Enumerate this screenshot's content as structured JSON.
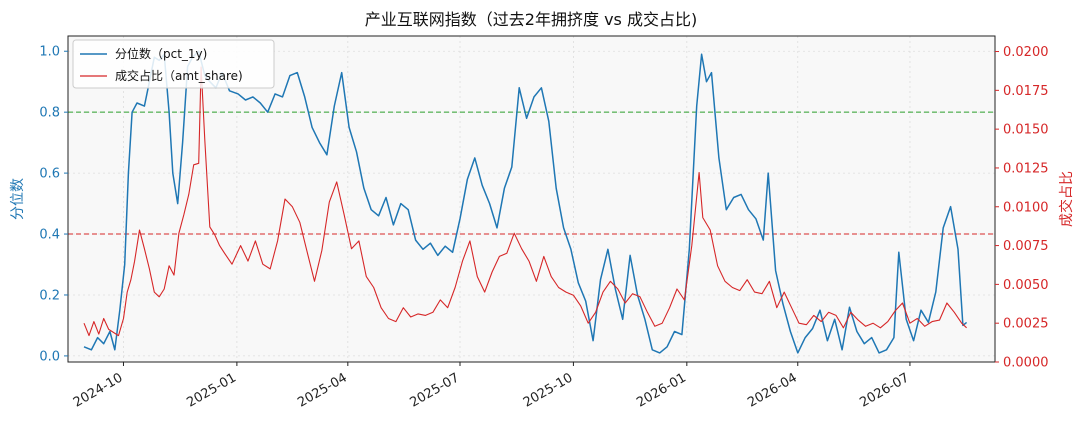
{
  "chart_data": {
    "type": "line",
    "title": "产业互联网指数（过去2年拥挤度 vs 成交占比)",
    "ylabel_left": "分位数",
    "ylabel_right": "成交占比",
    "x_ticks": [
      "2024-10",
      "2025-01",
      "2025-04",
      "2025-07",
      "2025-10",
      "2026-01",
      "2026-04",
      "2026-07"
    ],
    "x_range": [
      "2024-08-17",
      "2026-09-08"
    ],
    "y_left": {
      "lim": [
        -0.02,
        1.05
      ],
      "ticks": [
        "0.0",
        "0.2",
        "0.4",
        "0.6",
        "0.8",
        "1.0"
      ]
    },
    "y_right": {
      "lim": [
        0.0,
        0.021
      ],
      "ticks": [
        "0.0000",
        "0.0025",
        "0.0050",
        "0.0075",
        "0.0100",
        "0.0125",
        "0.0150",
        "0.0175",
        "0.0200"
      ]
    },
    "hlines": [
      {
        "axis": "left",
        "value": 0.8,
        "color": "#2ca02c"
      },
      {
        "axis": "left",
        "value": 0.4,
        "color": "#d62728"
      }
    ],
    "legend": {
      "placement": "top-left",
      "entries": [
        "分位数（pct_1y)",
        "成交占比（amt_share)"
      ]
    },
    "grid": true,
    "colors": {
      "pct": "#1f77b4",
      "amt": "#d62728"
    },
    "series": [
      {
        "name": "分位数（pct_1y)",
        "axis": "left",
        "points": [
          [
            "2024-08-30",
            0.03
          ],
          [
            "2024-09-05",
            0.02
          ],
          [
            "2024-09-10",
            0.06
          ],
          [
            "2024-09-15",
            0.04
          ],
          [
            "2024-09-20",
            0.08
          ],
          [
            "2024-09-24",
            0.02
          ],
          [
            "2024-09-28",
            0.15
          ],
          [
            "2024-10-02",
            0.3
          ],
          [
            "2024-10-05",
            0.6
          ],
          [
            "2024-10-08",
            0.8
          ],
          [
            "2024-10-12",
            0.83
          ],
          [
            "2024-10-18",
            0.82
          ],
          [
            "2024-10-22",
            0.9
          ],
          [
            "2024-10-26",
            0.98
          ],
          [
            "2024-10-30",
            0.97
          ],
          [
            "2024-11-03",
            0.99
          ],
          [
            "2024-11-07",
            0.8
          ],
          [
            "2024-11-10",
            0.6
          ],
          [
            "2024-11-14",
            0.5
          ],
          [
            "2024-11-18",
            0.7
          ],
          [
            "2024-11-22",
            0.95
          ],
          [
            "2024-11-26",
            0.98
          ],
          [
            "2024-12-01",
            1.0
          ],
          [
            "2024-12-06",
            0.92
          ],
          [
            "2024-12-10",
            0.9
          ],
          [
            "2024-12-15",
            0.88
          ],
          [
            "2024-12-20",
            0.93
          ],
          [
            "2024-12-26",
            0.87
          ],
          [
            "2025-01-02",
            0.86
          ],
          [
            "2025-01-08",
            0.84
          ],
          [
            "2025-01-14",
            0.85
          ],
          [
            "2025-01-20",
            0.83
          ],
          [
            "2025-01-26",
            0.8
          ],
          [
            "2025-02-01",
            0.86
          ],
          [
            "2025-02-07",
            0.85
          ],
          [
            "2025-02-13",
            0.92
          ],
          [
            "2025-02-19",
            0.93
          ],
          [
            "2025-02-25",
            0.85
          ],
          [
            "2025-03-03",
            0.75
          ],
          [
            "2025-03-09",
            0.7
          ],
          [
            "2025-03-15",
            0.66
          ],
          [
            "2025-03-21",
            0.82
          ],
          [
            "2025-03-27",
            0.93
          ],
          [
            "2025-04-02",
            0.75
          ],
          [
            "2025-04-08",
            0.67
          ],
          [
            "2025-04-14",
            0.55
          ],
          [
            "2025-04-20",
            0.48
          ],
          [
            "2025-04-26",
            0.46
          ],
          [
            "2025-05-02",
            0.52
          ],
          [
            "2025-05-08",
            0.43
          ],
          [
            "2025-05-14",
            0.5
          ],
          [
            "2025-05-20",
            0.48
          ],
          [
            "2025-05-26",
            0.38
          ],
          [
            "2025-06-01",
            0.35
          ],
          [
            "2025-06-07",
            0.37
          ],
          [
            "2025-06-13",
            0.33
          ],
          [
            "2025-06-19",
            0.36
          ],
          [
            "2025-06-25",
            0.34
          ],
          [
            "2025-07-01",
            0.45
          ],
          [
            "2025-07-07",
            0.58
          ],
          [
            "2025-07-13",
            0.65
          ],
          [
            "2025-07-19",
            0.56
          ],
          [
            "2025-07-25",
            0.5
          ],
          [
            "2025-07-31",
            0.42
          ],
          [
            "2025-08-06",
            0.55
          ],
          [
            "2025-08-12",
            0.62
          ],
          [
            "2025-08-18",
            0.88
          ],
          [
            "2025-08-24",
            0.78
          ],
          [
            "2025-08-30",
            0.85
          ],
          [
            "2025-09-05",
            0.88
          ],
          [
            "2025-09-11",
            0.77
          ],
          [
            "2025-09-17",
            0.55
          ],
          [
            "2025-09-23",
            0.42
          ],
          [
            "2025-09-29",
            0.35
          ],
          [
            "2025-10-05",
            0.24
          ],
          [
            "2025-10-11",
            0.18
          ],
          [
            "2025-10-17",
            0.05
          ],
          [
            "2025-10-23",
            0.25
          ],
          [
            "2025-10-29",
            0.35
          ],
          [
            "2025-11-04",
            0.22
          ],
          [
            "2025-11-10",
            0.12
          ],
          [
            "2025-11-16",
            0.33
          ],
          [
            "2025-11-22",
            0.2
          ],
          [
            "2025-11-28",
            0.12
          ],
          [
            "2025-12-04",
            0.02
          ],
          [
            "2025-12-10",
            0.01
          ],
          [
            "2025-12-16",
            0.03
          ],
          [
            "2025-12-22",
            0.08
          ],
          [
            "2025-12-28",
            0.07
          ],
          [
            "2026-01-03",
            0.35
          ],
          [
            "2026-01-09",
            0.82
          ],
          [
            "2026-01-13",
            0.99
          ],
          [
            "2026-01-17",
            0.9
          ],
          [
            "2026-01-21",
            0.93
          ],
          [
            "2026-01-27",
            0.65
          ],
          [
            "2026-02-02",
            0.48
          ],
          [
            "2026-02-08",
            0.52
          ],
          [
            "2026-02-14",
            0.53
          ],
          [
            "2026-02-20",
            0.48
          ],
          [
            "2026-02-26",
            0.45
          ],
          [
            "2026-03-04",
            0.38
          ],
          [
            "2026-03-08",
            0.6
          ],
          [
            "2026-03-14",
            0.28
          ],
          [
            "2026-03-20",
            0.17
          ],
          [
            "2026-03-26",
            0.08
          ],
          [
            "2026-04-01",
            0.01
          ],
          [
            "2026-04-07",
            0.06
          ],
          [
            "2026-04-13",
            0.09
          ],
          [
            "2026-04-19",
            0.15
          ],
          [
            "2026-04-25",
            0.05
          ],
          [
            "2026-05-01",
            0.12
          ],
          [
            "2026-05-07",
            0.02
          ],
          [
            "2026-05-13",
            0.16
          ],
          [
            "2026-05-19",
            0.08
          ],
          [
            "2026-05-25",
            0.04
          ],
          [
            "2026-05-31",
            0.06
          ],
          [
            "2026-06-06",
            0.01
          ],
          [
            "2026-06-12",
            0.02
          ],
          [
            "2026-06-18",
            0.06
          ],
          [
            "2026-06-22",
            0.34
          ],
          [
            "2026-06-28",
            0.12
          ],
          [
            "2026-07-04",
            0.05
          ],
          [
            "2026-07-10",
            0.15
          ],
          [
            "2026-07-16",
            0.11
          ],
          [
            "2026-07-22",
            0.21
          ],
          [
            "2026-07-28",
            0.42
          ],
          [
            "2026-08-03",
            0.49
          ],
          [
            "2026-08-09",
            0.35
          ],
          [
            "2026-08-13",
            0.1
          ],
          [
            "2026-08-16",
            0.11
          ]
        ]
      },
      {
        "name": "成交占比（amt_share)",
        "axis": "right",
        "points": [
          [
            "2024-08-30",
            0.0025
          ],
          [
            "2024-09-03",
            0.0017
          ],
          [
            "2024-09-07",
            0.0026
          ],
          [
            "2024-09-11",
            0.0018
          ],
          [
            "2024-09-15",
            0.0028
          ],
          [
            "2024-09-19",
            0.0021
          ],
          [
            "2024-09-23",
            0.0019
          ],
          [
            "2024-09-27",
            0.0017
          ],
          [
            "2024-10-01",
            0.0028
          ],
          [
            "2024-10-04",
            0.0045
          ],
          [
            "2024-10-07",
            0.0053
          ],
          [
            "2024-10-10",
            0.0065
          ],
          [
            "2024-10-14",
            0.0085
          ],
          [
            "2024-10-18",
            0.0073
          ],
          [
            "2024-10-22",
            0.006
          ],
          [
            "2024-10-26",
            0.0045
          ],
          [
            "2024-10-30",
            0.0042
          ],
          [
            "2024-11-03",
            0.0047
          ],
          [
            "2024-11-07",
            0.0062
          ],
          [
            "2024-11-11",
            0.0056
          ],
          [
            "2024-11-15",
            0.0083
          ],
          [
            "2024-11-19",
            0.0095
          ],
          [
            "2024-11-23",
            0.0108
          ],
          [
            "2024-11-27",
            0.0127
          ],
          [
            "2024-12-01",
            0.0128
          ],
          [
            "2024-12-03",
            0.019
          ],
          [
            "2024-12-06",
            0.0143
          ],
          [
            "2024-12-10",
            0.0087
          ],
          [
            "2024-12-14",
            0.0082
          ],
          [
            "2024-12-18",
            0.0075
          ],
          [
            "2024-12-22",
            0.007
          ],
          [
            "2024-12-28",
            0.0063
          ],
          [
            "2025-01-04",
            0.0075
          ],
          [
            "2025-01-10",
            0.0065
          ],
          [
            "2025-01-16",
            0.0078
          ],
          [
            "2025-01-22",
            0.0063
          ],
          [
            "2025-01-28",
            0.006
          ],
          [
            "2025-02-03",
            0.0078
          ],
          [
            "2025-02-09",
            0.0105
          ],
          [
            "2025-02-15",
            0.01
          ],
          [
            "2025-02-21",
            0.009
          ],
          [
            "2025-02-27",
            0.0071
          ],
          [
            "2025-03-05",
            0.0052
          ],
          [
            "2025-03-11",
            0.0072
          ],
          [
            "2025-03-17",
            0.0103
          ],
          [
            "2025-03-23",
            0.0116
          ],
          [
            "2025-03-29",
            0.0095
          ],
          [
            "2025-04-04",
            0.0073
          ],
          [
            "2025-04-10",
            0.0078
          ],
          [
            "2025-04-16",
            0.0055
          ],
          [
            "2025-04-22",
            0.0048
          ],
          [
            "2025-04-28",
            0.0035
          ],
          [
            "2025-05-04",
            0.0028
          ],
          [
            "2025-05-10",
            0.0026
          ],
          [
            "2025-05-16",
            0.0035
          ],
          [
            "2025-05-22",
            0.0029
          ],
          [
            "2025-05-28",
            0.0031
          ],
          [
            "2025-06-03",
            0.003
          ],
          [
            "2025-06-09",
            0.0032
          ],
          [
            "2025-06-15",
            0.004
          ],
          [
            "2025-06-21",
            0.0035
          ],
          [
            "2025-06-27",
            0.0048
          ],
          [
            "2025-07-03",
            0.0065
          ],
          [
            "2025-07-09",
            0.0078
          ],
          [
            "2025-07-15",
            0.0055
          ],
          [
            "2025-07-21",
            0.0045
          ],
          [
            "2025-07-27",
            0.0058
          ],
          [
            "2025-08-02",
            0.0068
          ],
          [
            "2025-08-08",
            0.007
          ],
          [
            "2025-08-14",
            0.0083
          ],
          [
            "2025-08-20",
            0.0073
          ],
          [
            "2025-08-26",
            0.0065
          ],
          [
            "2025-09-01",
            0.0052
          ],
          [
            "2025-09-07",
            0.0068
          ],
          [
            "2025-09-13",
            0.0055
          ],
          [
            "2025-09-19",
            0.0048
          ],
          [
            "2025-09-25",
            0.0045
          ],
          [
            "2025-10-01",
            0.0043
          ],
          [
            "2025-10-07",
            0.0036
          ],
          [
            "2025-10-13",
            0.0025
          ],
          [
            "2025-10-19",
            0.0032
          ],
          [
            "2025-10-25",
            0.0045
          ],
          [
            "2025-10-31",
            0.0052
          ],
          [
            "2025-11-06",
            0.0047
          ],
          [
            "2025-11-12",
            0.0038
          ],
          [
            "2025-11-18",
            0.0044
          ],
          [
            "2025-11-24",
            0.0042
          ],
          [
            "2025-11-30",
            0.0032
          ],
          [
            "2025-12-06",
            0.0023
          ],
          [
            "2025-12-12",
            0.0025
          ],
          [
            "2025-12-18",
            0.0035
          ],
          [
            "2025-12-24",
            0.0047
          ],
          [
            "2025-12-30",
            0.004
          ],
          [
            "2026-01-05",
            0.0075
          ],
          [
            "2026-01-11",
            0.0122
          ],
          [
            "2026-01-14",
            0.0093
          ],
          [
            "2026-01-20",
            0.0085
          ],
          [
            "2026-01-26",
            0.0062
          ],
          [
            "2026-02-01",
            0.0052
          ],
          [
            "2026-02-07",
            0.0048
          ],
          [
            "2026-02-13",
            0.0046
          ],
          [
            "2026-02-19",
            0.0053
          ],
          [
            "2026-02-25",
            0.0045
          ],
          [
            "2026-03-03",
            0.0044
          ],
          [
            "2026-03-09",
            0.0052
          ],
          [
            "2026-03-15",
            0.0035
          ],
          [
            "2026-03-21",
            0.0045
          ],
          [
            "2026-03-27",
            0.0035
          ],
          [
            "2026-04-02",
            0.0025
          ],
          [
            "2026-04-08",
            0.0024
          ],
          [
            "2026-04-14",
            0.003
          ],
          [
            "2026-04-20",
            0.0026
          ],
          [
            "2026-04-26",
            0.0032
          ],
          [
            "2026-05-02",
            0.003
          ],
          [
            "2026-05-08",
            0.0022
          ],
          [
            "2026-05-14",
            0.0032
          ],
          [
            "2026-05-20",
            0.0027
          ],
          [
            "2026-05-26",
            0.0023
          ],
          [
            "2026-06-01",
            0.0025
          ],
          [
            "2026-06-07",
            0.0022
          ],
          [
            "2026-06-13",
            0.0026
          ],
          [
            "2026-06-19",
            0.0033
          ],
          [
            "2026-06-25",
            0.0038
          ],
          [
            "2026-07-01",
            0.0025
          ],
          [
            "2026-07-07",
            0.0028
          ],
          [
            "2026-07-13",
            0.0023
          ],
          [
            "2026-07-19",
            0.0026
          ],
          [
            "2026-07-25",
            0.0027
          ],
          [
            "2026-07-31",
            0.0038
          ],
          [
            "2026-08-06",
            0.0032
          ],
          [
            "2026-08-12",
            0.0025
          ],
          [
            "2026-08-16",
            0.0022
          ]
        ]
      }
    ]
  }
}
